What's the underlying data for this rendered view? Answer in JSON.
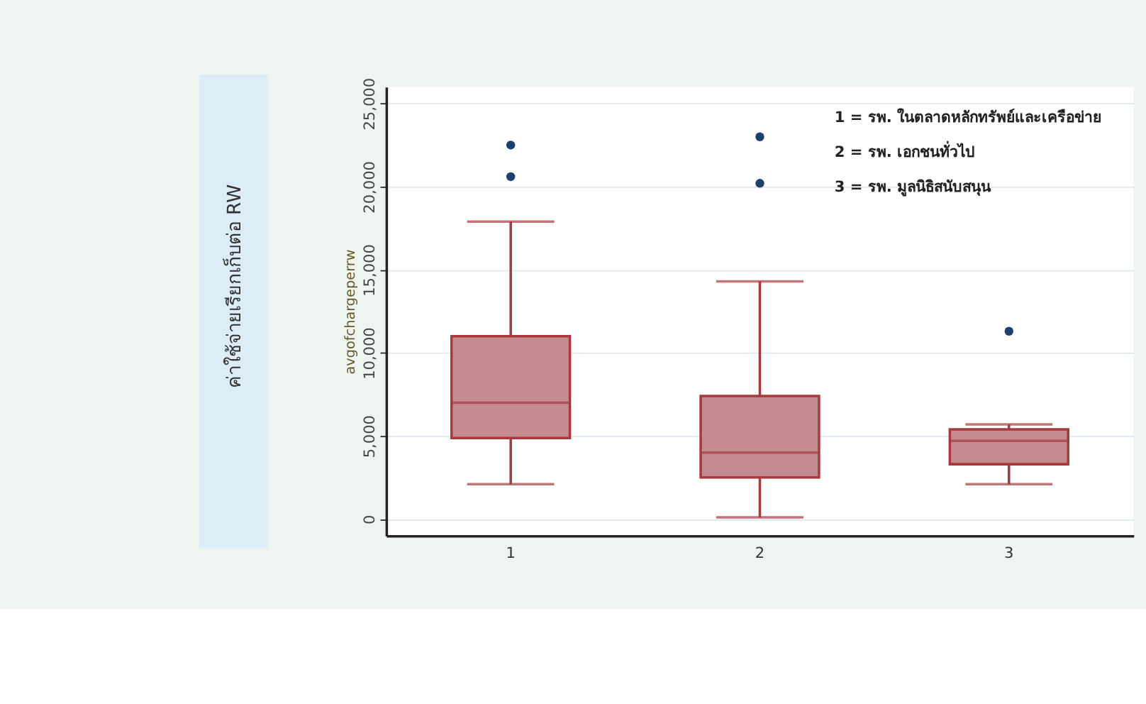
{
  "chart_data": {
    "type": "box",
    "ylabel": "avgofchargeperrw",
    "categories": [
      "1",
      "2",
      "3"
    ],
    "boxes": [
      {
        "low": 2100,
        "q1": 4870,
        "median": 7000,
        "q3": 11000,
        "high": 17900,
        "outliers": [
          22500,
          20600
        ]
      },
      {
        "low": 100,
        "q1": 2500,
        "median": 4000,
        "q3": 7400,
        "high": 14300,
        "outliers": [
          23000,
          20200
        ]
      },
      {
        "low": 2100,
        "q1": 3300,
        "median": 4700,
        "q3": 5400,
        "high": 5700,
        "outliers": [
          11300
        ]
      }
    ],
    "color": "#c48b90",
    "ylim": [
      -1000,
      26000
    ],
    "yticks": [
      {
        "value": 0,
        "label": "0"
      },
      {
        "value": 5000,
        "label": "5,000"
      },
      {
        "value": 10000,
        "label": "10,000"
      },
      {
        "value": 15000,
        "label": "15,000"
      },
      {
        "value": 20000,
        "label": "20,000"
      },
      {
        "value": 25000,
        "label": "25,000"
      }
    ],
    "grid": "y",
    "annotations": [
      "ค่าใช้จ่ายเรียกเก็บต่อ RW",
      "1 = รพ. ในตลาดหลักทรัพย์และเครือข่าย",
      "2 = รพ. เอกชนทั่วไป",
      "3 = รพ. มูลนิธิสนับสนุน"
    ]
  }
}
